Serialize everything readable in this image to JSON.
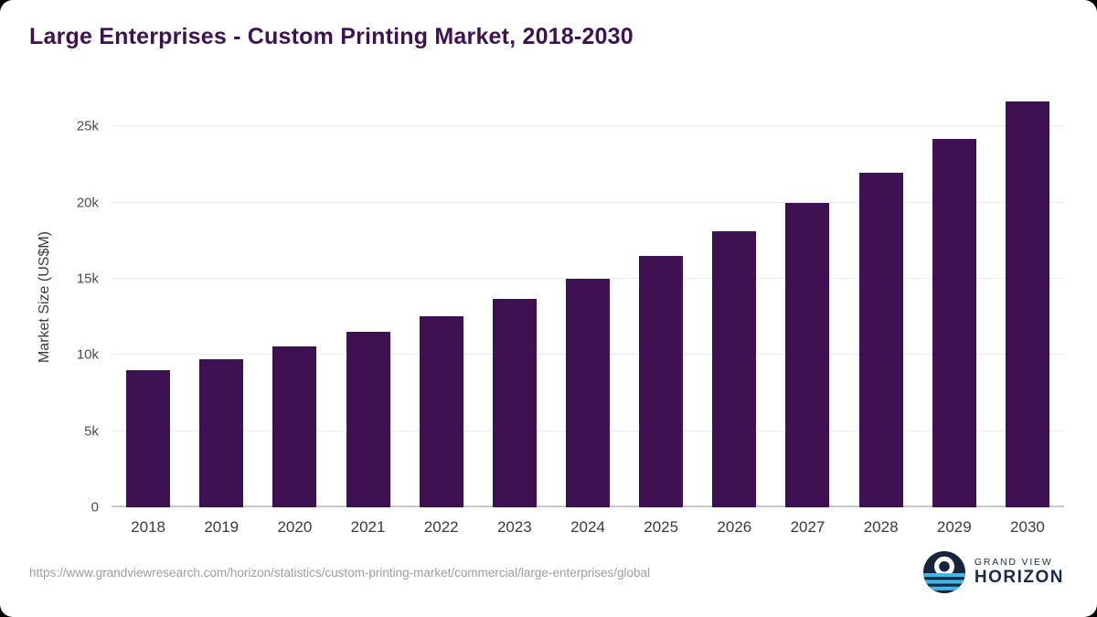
{
  "chart_data": {
    "type": "bar",
    "title": "Large Enterprises - Custom Printing Market, 2018-2030",
    "ylabel": "Market Size (US$M)",
    "categories": [
      "2018",
      "2019",
      "2020",
      "2021",
      "2022",
      "2023",
      "2024",
      "2025",
      "2026",
      "2027",
      "2028",
      "2029",
      "2030"
    ],
    "values": [
      9000,
      9750,
      10550,
      11500,
      12550,
      13700,
      15000,
      16500,
      18100,
      20000,
      21950,
      24200,
      26650
    ],
    "unit": "US$M",
    "ylim": [
      0,
      27600
    ],
    "yticks": [
      {
        "value": 0,
        "label": "0"
      },
      {
        "value": 5000,
        "label": "5k"
      },
      {
        "value": 10000,
        "label": "10k"
      },
      {
        "value": 15000,
        "label": "15k"
      },
      {
        "value": 20000,
        "label": "20k"
      },
      {
        "value": 25000,
        "label": "25k"
      }
    ],
    "grid": true,
    "legend": false,
    "bar_color": "#3e1152"
  },
  "footer": {
    "source_url": "https://www.grandviewresearch.com/horizon/statistics/custom-printing-market/commercial/large-enterprises/global",
    "logo": {
      "line1": "GRAND VIEW",
      "line2": "HORIZON"
    }
  },
  "colors": {
    "title": "#3e1152",
    "bar": "#3e1152",
    "gridline": "#ebebeb",
    "baseline": "#c9c9c9",
    "logo_navy": "#16243d",
    "logo_cyan": "#3fb7e8",
    "source_text": "#9e9e9e"
  }
}
